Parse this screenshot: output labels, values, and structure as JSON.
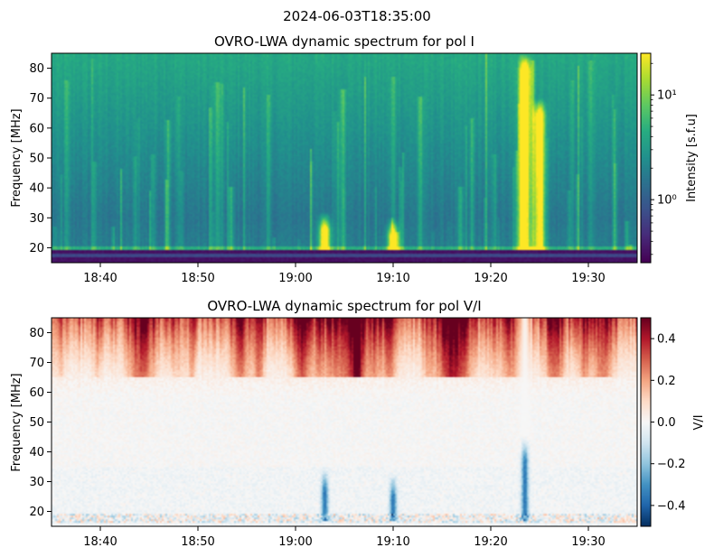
{
  "suptitle": "2024-06-03T18:35:00",
  "chart_data": [
    {
      "type": "heatmap",
      "title": "OVRO-LWA dynamic spectrum for pol I",
      "ylabel": "Frequency [MHz]",
      "xlabel": "",
      "x_time_range": [
        "18:35",
        "19:35"
      ],
      "x_ticks": [
        "18:40",
        "18:50",
        "19:00",
        "19:10",
        "19:20",
        "19:30"
      ],
      "ylim": [
        15,
        85
      ],
      "y_ticks": [
        20,
        30,
        40,
        50,
        60,
        70,
        80
      ],
      "grid": false,
      "colormap": "viridis",
      "colorbar": {
        "label": "Intensity [s.f.u]",
        "scale": "log",
        "range": [
          0.25,
          25
        ],
        "ticks": [
          {
            "value": 1,
            "label": "10⁰"
          },
          {
            "value": 10,
            "label": "10¹"
          }
        ]
      },
      "features": {
        "low_band_cutoff_mhz": 19,
        "bright_bursts": [
          {
            "time": "19:03",
            "fmin": 17,
            "fmax": 32,
            "level": 0.95
          },
          {
            "time": "19:10",
            "fmin": 17,
            "fmax": 30,
            "level": 0.85
          },
          {
            "time": "19:23.5",
            "fmin": 17,
            "fmax": 85,
            "level": 1.0
          },
          {
            "time": "19:25",
            "fmin": 17,
            "fmax": 70,
            "level": 0.9
          }
        ]
      }
    },
    {
      "type": "heatmap",
      "title": "OVRO-LWA dynamic spectrum for pol V/I",
      "ylabel": "Frequency [MHz]",
      "xlabel": "",
      "x_time_range": [
        "18:35",
        "19:35"
      ],
      "x_ticks": [
        "18:40",
        "18:50",
        "19:00",
        "19:10",
        "19:20",
        "19:30"
      ],
      "ylim": [
        15,
        85
      ],
      "y_ticks": [
        20,
        30,
        40,
        50,
        60,
        70,
        80
      ],
      "grid": false,
      "colormap": "RdBu_r",
      "colorbar": {
        "label": "V/I",
        "scale": "linear",
        "range": [
          -0.5,
          0.5
        ],
        "ticks": [
          {
            "value": -0.4,
            "label": "−0.4"
          },
          {
            "value": -0.2,
            "label": "−0.2"
          },
          {
            "value": 0.0,
            "label": "0.0"
          },
          {
            "value": 0.2,
            "label": "0.2"
          },
          {
            "value": 0.4,
            "label": "0.4"
          }
        ]
      },
      "features": {
        "high_freq_positive_above_mhz": 65,
        "negative_bursts": [
          {
            "time": "19:03",
            "fmin": 17,
            "fmax": 35
          },
          {
            "time": "19:10",
            "fmin": 17,
            "fmax": 33
          },
          {
            "time": "19:23.5",
            "fmin": 17,
            "fmax": 45
          }
        ]
      }
    }
  ]
}
